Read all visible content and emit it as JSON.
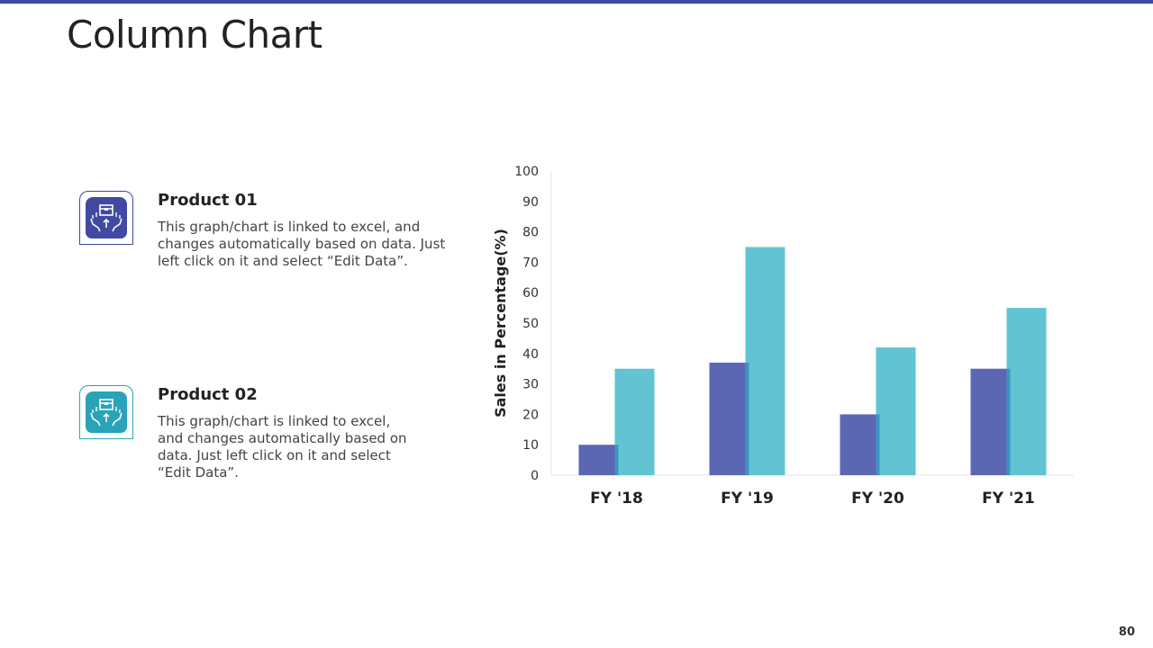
{
  "page": {
    "title": "Column Chart",
    "number": "80"
  },
  "products": [
    {
      "title": "Product 01",
      "description": "This graph/chart is linked to excel, and changes automatically based on data. Just left click on it and select “Edit Data”.",
      "icon": "hands-holding-box-icon"
    },
    {
      "title": "Product 02",
      "description": "This graph/chart is linked to excel, and changes automatically based on data. Just left click on it and select “Edit Data”.",
      "icon": "hands-holding-box-icon"
    }
  ],
  "colors": {
    "accent": "#3f4aa0",
    "product01": "#5b67b3",
    "product02": "#62c4d2",
    "product02_icon": "#2aa3b8"
  },
  "chart_data": {
    "type": "bar",
    "categories": [
      "FY '18",
      "FY '19",
      "FY '20",
      "FY '21"
    ],
    "series": [
      {
        "name": "Product 01",
        "values": [
          10,
          37,
          20,
          35
        ]
      },
      {
        "name": "Product 02",
        "values": [
          35,
          75,
          42,
          55
        ]
      }
    ],
    "ylabel": "Sales in Percentage(%)",
    "xlabel": "",
    "ylim": [
      0,
      100
    ],
    "yticks": [
      "0",
      "10",
      "20",
      "30",
      "40",
      "50",
      "60",
      "70",
      "80",
      "90",
      "100"
    ],
    "grid": false,
    "legend": "none"
  }
}
